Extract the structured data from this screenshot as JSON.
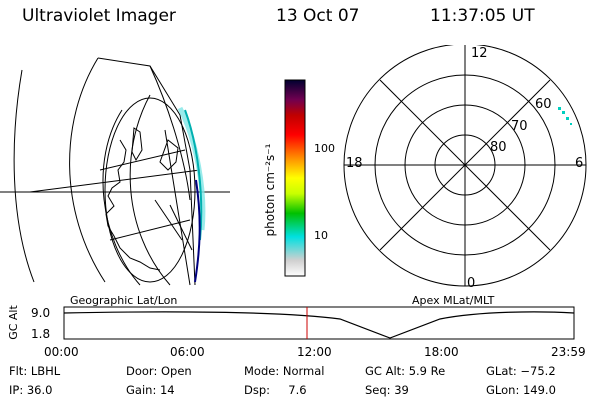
{
  "header": {
    "title": "Ultraviolet Imager",
    "date": "13 Oct 07",
    "time": "11:37:05 UT"
  },
  "colorbar": {
    "unit_label": "photon cm⁻²s⁻¹",
    "ticks": [
      "100",
      "10"
    ],
    "colors": [
      "#ffffff",
      "#c8c8c8",
      "#00e0e0",
      "#00c000",
      "#c8ff00",
      "#ffff00",
      "#ff9000",
      "#ff0000",
      "#c00000",
      "#700050",
      "#000030"
    ]
  },
  "left_map": {
    "label": "Geographic Lat/Lon"
  },
  "right_map": {
    "label": "Apex MLat/MLT",
    "mlt_labels": {
      "top": "12",
      "bottom": "0",
      "left": "18",
      "right": "6"
    },
    "lat_labels": [
      "60",
      "70",
      "80"
    ]
  },
  "altitude_plot": {
    "ylabel": "GC Alt",
    "yticks": [
      "9.0",
      "1.8"
    ],
    "xticks": [
      "00:00",
      "06:00",
      "12:00",
      "18:00",
      "23:59"
    ]
  },
  "footer": {
    "flt": "Flt: LBHL",
    "door": "Door: Open",
    "mode": "Mode: Normal",
    "gc_alt": "GC Alt: 5.9 Re",
    "glat": "GLat: −75.2",
    "ip": "IP: 36.0",
    "gain": "Gain: 14",
    "dsp": "Dsp:     7.6",
    "seq": "Seq: 39",
    "glon": "GLon: 149.0"
  }
}
